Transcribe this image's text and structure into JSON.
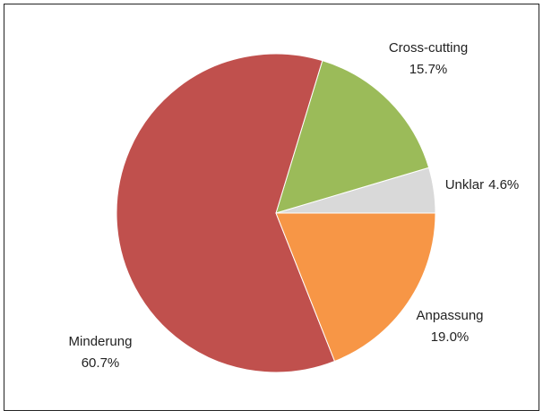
{
  "chart_data": {
    "type": "pie",
    "categories": [
      "Unklar",
      "Cross-cutting",
      "Minderung",
      "Anpassung"
    ],
    "values": [
      4.6,
      15.7,
      60.7,
      19.0
    ],
    "value_labels": [
      "4.6%",
      "15.7%",
      "60.7%",
      "19.0%"
    ],
    "colors": [
      "#d9d9d9",
      "#9bbb59",
      "#c0504d",
      "#f79646"
    ]
  }
}
